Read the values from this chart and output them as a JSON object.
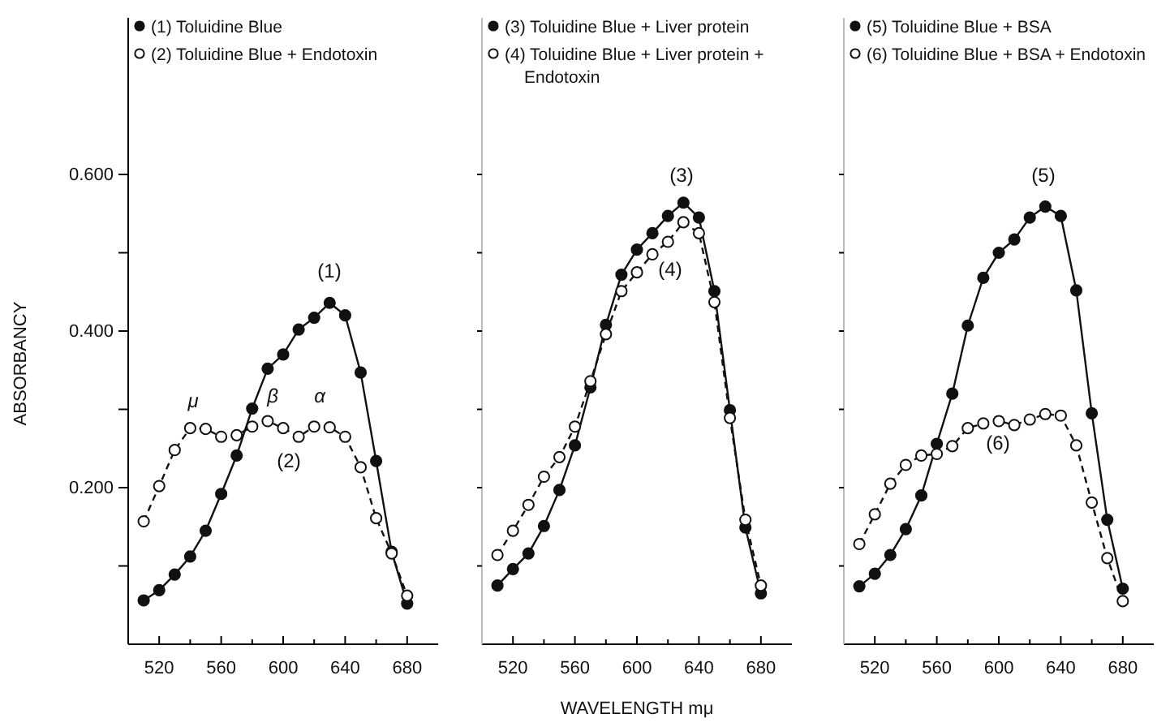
{
  "chart_data": [
    {
      "type": "line",
      "ylabel": "ABSORBANCY",
      "x": [
        510,
        520,
        530,
        540,
        550,
        560,
        570,
        580,
        590,
        600,
        610,
        620,
        630,
        640,
        650,
        660,
        670,
        680
      ],
      "xlim": [
        500,
        700
      ],
      "ylim": [
        0,
        0.8
      ],
      "xticks": [
        520,
        {
          "value": 540,
          "label": null
        },
        560,
        {
          "value": 580,
          "label": null
        },
        600,
        {
          "value": 620,
          "label": null
        },
        640,
        {
          "value": 660,
          "label": null
        },
        680
      ],
      "yticks": [
        {
          "value": 0.1,
          "label": null
        },
        {
          "value": 0.2,
          "label": "0.200"
        },
        {
          "value": 0.3,
          "label": null
        },
        {
          "value": 0.4,
          "label": "0.400"
        },
        {
          "value": 0.5,
          "label": null
        },
        {
          "value": 0.6,
          "label": "0.600"
        }
      ],
      "marker": "circle",
      "legend": "top left",
      "series": [
        {
          "name": "(1) Toluidine Blue",
          "color": "#111111",
          "line_style": "solid",
          "values": [
            0.056,
            0.069,
            0.089,
            0.112,
            0.145,
            0.192,
            0.241,
            0.301,
            0.352,
            0.37,
            0.402,
            0.417,
            0.436,
            0.42,
            0.347,
            0.234,
            0.118,
            0.052
          ]
        },
        {
          "name": "(2) Toluidine Blue + Endotoxin",
          "color": "#111111",
          "line_style": "dashed",
          "values": [
            0.157,
            0.202,
            0.248,
            0.276,
            0.275,
            0.265,
            0.267,
            0.278,
            0.285,
            0.276,
            0.265,
            0.278,
            0.277,
            0.265,
            0.226,
            0.161,
            0.116,
            0.062
          ]
        }
      ],
      "annotations": [
        "(1)",
        "(2)",
        "μ",
        "β",
        "α"
      ]
    },
    {
      "type": "line",
      "xlabel": "WAVELENGTH mμ",
      "x": [
        510,
        520,
        530,
        540,
        550,
        560,
        570,
        580,
        590,
        600,
        610,
        620,
        630,
        640,
        650,
        660,
        670,
        680
      ],
      "xlim": [
        500,
        700
      ],
      "ylim": [
        0,
        0.8
      ],
      "yticks": [
        {
          "value": 0.1,
          "label": null
        },
        {
          "value": 0.2,
          "label": null
        },
        {
          "value": 0.3,
          "label": null
        },
        {
          "value": 0.4,
          "label": null
        },
        {
          "value": 0.5,
          "label": null
        },
        {
          "value": 0.6,
          "label": null
        }
      ],
      "xticks": [
        520,
        {
          "value": 540,
          "label": null
        },
        560,
        {
          "value": 580,
          "label": null
        },
        600,
        {
          "value": 620,
          "label": null
        },
        640,
        {
          "value": 660,
          "label": null
        },
        680
      ],
      "tick_labels": "x",
      "marker": "circle",
      "legend": "top left",
      "series": [
        {
          "name": "(3) Toluidine Blue + Liver protein",
          "color": "#111111",
          "line_style": "solid",
          "values": [
            0.075,
            0.096,
            0.116,
            0.151,
            0.197,
            0.254,
            0.328,
            0.408,
            0.472,
            0.504,
            0.525,
            0.547,
            0.564,
            0.545,
            0.451,
            0.299,
            0.149,
            0.065
          ]
        },
        {
          "name": "(4) Toluidine Blue + Liver protein + Endotoxin",
          "color": "#111111",
          "line_style": "dashed",
          "values": [
            0.114,
            0.145,
            0.178,
            0.214,
            0.239,
            0.278,
            0.336,
            0.396,
            0.451,
            0.475,
            0.498,
            0.514,
            0.539,
            0.525,
            0.437,
            0.289,
            0.159,
            0.075
          ]
        }
      ],
      "annotations": [
        "(3)",
        "(4)"
      ]
    },
    {
      "type": "line",
      "x": [
        510,
        520,
        530,
        540,
        550,
        560,
        570,
        580,
        590,
        600,
        610,
        620,
        630,
        640,
        650,
        660,
        670,
        680
      ],
      "xlim": [
        500,
        700
      ],
      "ylim": [
        0,
        0.8
      ],
      "yticks": [
        {
          "value": 0.1,
          "label": null
        },
        {
          "value": 0.2,
          "label": null
        },
        {
          "value": 0.3,
          "label": null
        },
        {
          "value": 0.4,
          "label": null
        },
        {
          "value": 0.5,
          "label": null
        },
        {
          "value": 0.6,
          "label": null
        }
      ],
      "xticks": [
        520,
        {
          "value": 540,
          "label": null
        },
        560,
        {
          "value": 580,
          "label": null
        },
        600,
        {
          "value": 620,
          "label": null
        },
        640,
        {
          "value": 660,
          "label": null
        },
        680
      ],
      "tick_labels": "x",
      "marker": "circle",
      "legend": "top left",
      "series": [
        {
          "name": "(5) Toluidine Blue + BSA",
          "color": "#111111",
          "line_style": "solid",
          "values": [
            0.074,
            0.09,
            0.114,
            0.147,
            0.19,
            0.256,
            0.32,
            0.407,
            0.468,
            0.5,
            0.517,
            0.545,
            0.559,
            0.547,
            0.452,
            0.295,
            0.159,
            0.071
          ]
        },
        {
          "name": "(6) Toluidine Blue + BSA + Endotoxin",
          "color": "#111111",
          "line_style": "dashed",
          "values": [
            0.128,
            0.166,
            0.205,
            0.229,
            0.241,
            0.243,
            0.253,
            0.276,
            0.282,
            0.285,
            0.28,
            0.287,
            0.294,
            0.292,
            0.254,
            0.181,
            0.11,
            0.055
          ]
        }
      ],
      "annotations": [
        "(6)",
        "(5)"
      ]
    }
  ]
}
